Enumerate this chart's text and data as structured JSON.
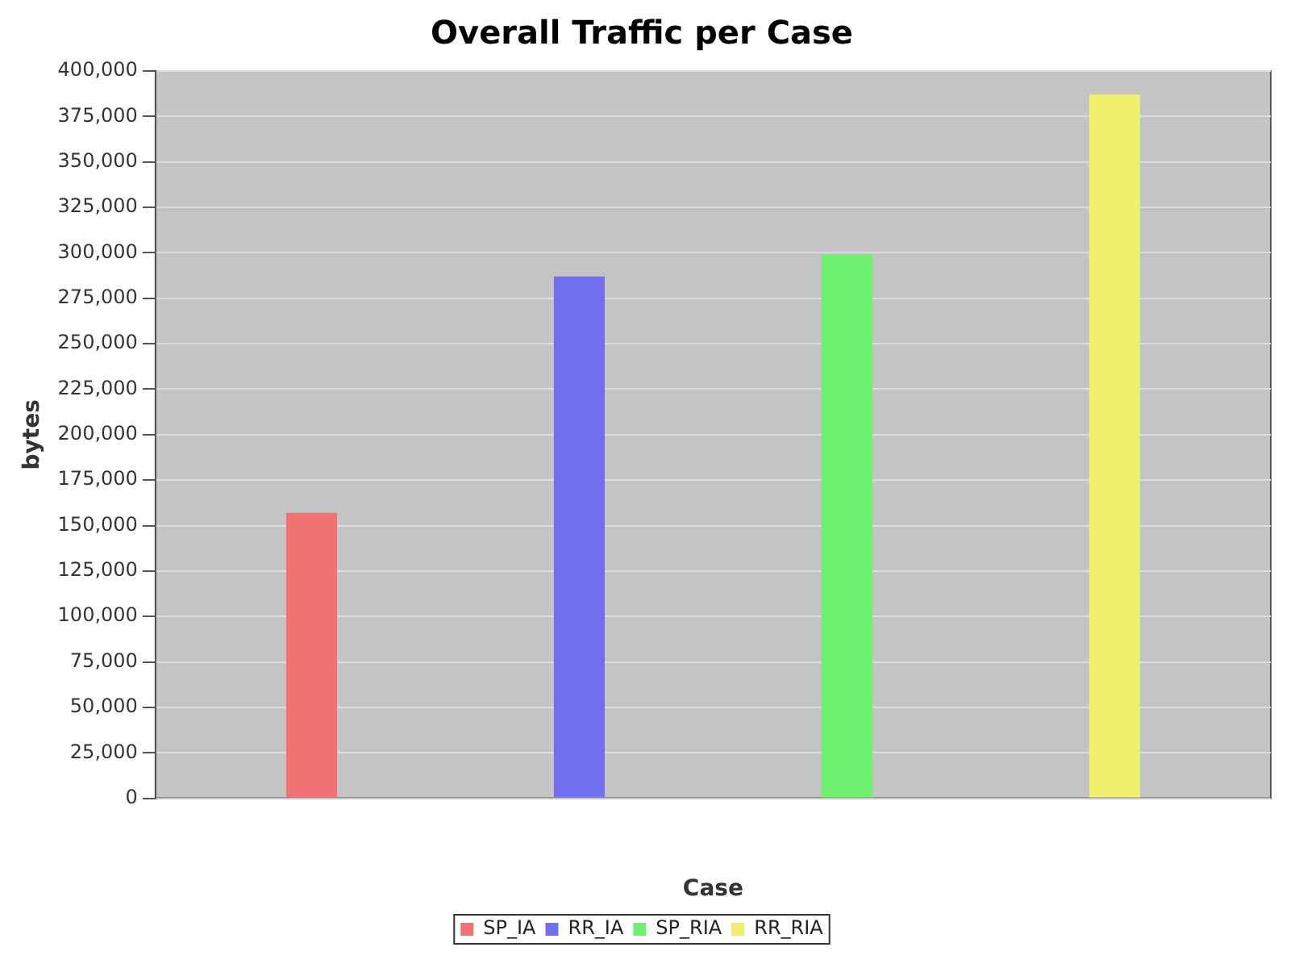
{
  "chart_data": {
    "type": "bar",
    "title": "Overall Traffic per Case",
    "xlabel": "Case",
    "ylabel": "bytes",
    "categories": [
      null
    ],
    "series": [
      {
        "name": "SP_IA",
        "color": "#f07272",
        "values": [
          157000
        ]
      },
      {
        "name": "RR_IA",
        "color": "#6f6ff0",
        "values": [
          287000
        ]
      },
      {
        "name": "SP_RIA",
        "color": "#6ff06f",
        "values": [
          299000
        ]
      },
      {
        "name": "RR_RIA",
        "color": "#f0f06f",
        "values": [
          387000
        ]
      }
    ],
    "ylim": [
      0,
      400000
    ],
    "yticks": [
      0,
      {
        "value": 25000,
        "label": "25,000"
      },
      {
        "value": 50000,
        "label": "50,000"
      },
      {
        "value": 75000,
        "label": "75,000"
      },
      {
        "value": 100000,
        "label": "100,000"
      },
      {
        "value": 125000,
        "label": "125,000"
      },
      {
        "value": 150000,
        "label": "150,000"
      },
      {
        "value": 175000,
        "label": "175,000"
      },
      {
        "value": 200000,
        "label": "200,000"
      },
      {
        "value": 225000,
        "label": "225,000"
      },
      {
        "value": 250000,
        "label": "250,000"
      },
      {
        "value": 275000,
        "label": "275,000"
      },
      {
        "value": 300000,
        "label": "300,000"
      },
      {
        "value": 325000,
        "label": "325,000"
      },
      {
        "value": 350000,
        "label": "350,000"
      },
      {
        "value": 375000,
        "label": "375,000"
      },
      {
        "value": 400000,
        "label": "400,000"
      }
    ],
    "grid": "y",
    "legend": "bottom"
  }
}
